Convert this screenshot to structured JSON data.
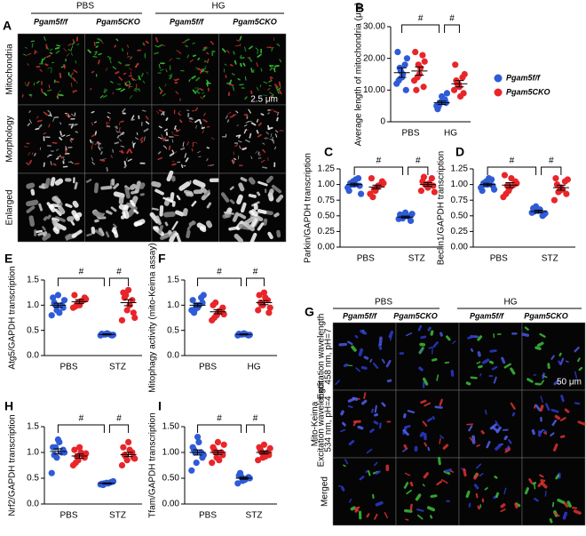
{
  "panel_a": {
    "label": "A",
    "groups": [
      "PBS",
      "HG"
    ],
    "genotypes": [
      "Pgam5f/f",
      "Pgam5CKO",
      "Pgam5f/f",
      "Pgam5CKO"
    ],
    "rows": [
      "Mitochondria",
      "Morphology",
      "Enlarged"
    ],
    "scale_bar": "2.5 μm"
  },
  "panel_g": {
    "label": "G",
    "groups": [
      "PBS",
      "HG"
    ],
    "genotypes": [
      "Pgam5f/f",
      "Pgam5CKO",
      "Pgam5f/f",
      "Pgam5CKO"
    ],
    "side_label": "Mito-Keima",
    "rows": [
      [
        "Excitation wavelength",
        "458 nm, pH=7"
      ],
      [
        "Excitation wavelength",
        "534 nm, pH=4"
      ],
      [
        "Merged"
      ]
    ],
    "scale_bar": "50 μm"
  },
  "chart_data": [
    {
      "type": "dot",
      "label": "B",
      "ylabel": "Average length of mitochondria (μm)",
      "categories": [
        "PBS",
        "HG"
      ],
      "ylim": [
        0,
        30
      ],
      "yticks": [
        0,
        {
          "value": 10,
          "label": "10.00"
        },
        {
          "value": 20,
          "label": "20.00"
        },
        {
          "value": 30,
          "label": "30.00"
        }
      ],
      "legend": "right",
      "annotations": [
        "#",
        "#"
      ],
      "series": [
        {
          "name": "Pgam5f/f",
          "color": "#2f5bd6",
          "values": [
            [
              12,
              16,
              18,
              22,
              14,
              10,
              13,
              15,
              20,
              17
            ],
            [
              5,
              6,
              7,
              4,
              8,
              6,
              5,
              7,
              9,
              6
            ]
          ],
          "means": [
            15.5,
            6
          ],
          "errors": [
            1.5,
            0.5
          ]
        },
        {
          "name": "Pgam5CKO",
          "color": "#e8262a",
          "values": [
            [
              13,
              18,
              21,
              22,
              15,
              11,
              10,
              17,
              19,
              14
            ],
            [
              10,
              12,
              14,
              18,
              11,
              9,
              13,
              8,
              15,
              12
            ]
          ],
          "means": [
            16,
            12
          ],
          "errors": [
            1.3,
            1
          ]
        }
      ]
    },
    {
      "type": "dot",
      "label": "C",
      "ylabel": "Parkin/GAPDH transcription",
      "categories": [
        "PBS",
        "STZ"
      ],
      "ylim": [
        0,
        1.25
      ],
      "yticks": [
        {
          "value": 0,
          "label": "0.00"
        },
        {
          "value": 0.25,
          "label": "0.25"
        },
        {
          "value": 0.5,
          "label": "0.50"
        },
        {
          "value": 0.75,
          "label": "0.75"
        },
        {
          "value": 1,
          "label": "1.00"
        },
        {
          "value": 1.25,
          "label": "1.25"
        }
      ],
      "annotations": [
        "#",
        "#"
      ],
      "series": [
        {
          "color": "#2f5bd6",
          "values": [
            [
              0.95,
              1.05,
              1.1,
              0.9,
              1.0,
              0.98,
              1.02,
              1.08,
              0.85,
              1.0
            ],
            [
              0.45,
              0.5,
              0.48,
              0.52,
              0.55,
              0.42,
              0.47,
              0.5,
              0.53,
              0.46
            ]
          ],
          "means": [
            1.0,
            0.48
          ],
          "errors": [
            0.02,
            0.015
          ]
        },
        {
          "color": "#e8262a",
          "values": [
            [
              0.85,
              0.9,
              1.0,
              1.1,
              0.95,
              1.05,
              0.8,
              0.98,
              1.02,
              0.92
            ],
            [
              0.9,
              1.0,
              1.1,
              1.05,
              0.95,
              0.98,
              1.12,
              1.02,
              0.88,
              1.0
            ]
          ],
          "means": [
            0.96,
            1.0
          ],
          "errors": [
            0.03,
            0.03
          ]
        }
      ]
    },
    {
      "type": "dot",
      "label": "D",
      "ylabel": "Beclin1/GAPDH transcription",
      "categories": [
        "PBS",
        "STZ"
      ],
      "ylim": [
        0,
        1.25
      ],
      "yticks": [
        {
          "value": 0,
          "label": "0.00"
        },
        {
          "value": 0.25,
          "label": "0.25"
        },
        {
          "value": 0.5,
          "label": "0.50"
        },
        {
          "value": 0.75,
          "label": "0.75"
        },
        {
          "value": 1,
          "label": "1.00"
        },
        {
          "value": 1.25,
          "label": "1.25"
        }
      ],
      "annotations": [
        "#",
        "#"
      ],
      "series": [
        {
          "color": "#2f5bd6",
          "values": [
            [
              0.95,
              1.05,
              1.08,
              0.9,
              1.0,
              0.98,
              1.02,
              1.1,
              0.92,
              1.0
            ],
            [
              0.55,
              0.6,
              0.5,
              0.62,
              0.58,
              0.52,
              0.57,
              0.6,
              0.54,
              0.65
            ]
          ],
          "means": [
            1.0,
            0.57
          ],
          "errors": [
            0.02,
            0.02
          ]
        },
        {
          "color": "#e8262a",
          "values": [
            [
              0.8,
              0.9,
              1.0,
              1.15,
              0.95,
              1.05,
              0.85,
              1.1,
              1.02,
              0.98
            ],
            [
              0.75,
              0.9,
              1.05,
              1.1,
              0.95,
              0.85,
              1.0,
              0.92,
              1.08,
              0.88
            ]
          ],
          "means": [
            0.99,
            0.95
          ],
          "errors": [
            0.04,
            0.04
          ]
        }
      ]
    },
    {
      "type": "dot",
      "label": "E",
      "ylabel": "Atg5/GAPDH transcription",
      "categories": [
        "PBS",
        "STZ"
      ],
      "ylim": [
        0,
        1.5
      ],
      "yticks": [
        {
          "value": 0,
          "label": "0.0"
        },
        {
          "value": 0.5,
          "label": "0.5"
        },
        {
          "value": 1,
          "label": "1.0"
        },
        {
          "value": 1.5,
          "label": "1.5"
        }
      ],
      "annotations": [
        "#",
        "#"
      ],
      "series": [
        {
          "color": "#2f5bd6",
          "values": [
            [
              0.8,
              0.9,
              1.0,
              1.15,
              1.2,
              0.95,
              1.05,
              0.85,
              1.1,
              1.0
            ],
            [
              0.4,
              0.42,
              0.41,
              0.43,
              0.44,
              0.4,
              0.42,
              0.43,
              0.41,
              0.42
            ]
          ],
          "means": [
            1.0,
            0.42
          ],
          "errors": [
            0.04,
            0.01
          ]
        },
        {
          "color": "#e8262a",
          "values": [
            [
              0.95,
              1.05,
              1.1,
              1.2,
              1.0,
              1.15,
              0.98,
              1.08,
              1.12,
              1.02
            ],
            [
              0.7,
              0.9,
              1.1,
              1.25,
              1.3,
              0.85,
              1.15,
              1.0,
              0.75,
              1.2
            ]
          ],
          "means": [
            1.07,
            1.05
          ],
          "errors": [
            0.04,
            0.06
          ]
        }
      ]
    },
    {
      "type": "dot",
      "label": "F",
      "ylabel": "Mitophagy activity (mito-Keima assay)",
      "categories": [
        "PBS",
        "HG"
      ],
      "ylim": [
        0,
        1.5
      ],
      "yticks": [
        {
          "value": 0,
          "label": "0.0"
        },
        {
          "value": 0.5,
          "label": "0.5"
        },
        {
          "value": 1,
          "label": "1.0"
        },
        {
          "value": 1.5,
          "label": "1.5"
        }
      ],
      "annotations": [
        "#",
        "#"
      ],
      "series": [
        {
          "color": "#2f5bd6",
          "values": [
            [
              0.9,
              1.0,
              1.15,
              1.1,
              0.95,
              1.05,
              0.85,
              1.0,
              1.2,
              0.92
            ],
            [
              0.4,
              0.42,
              0.41,
              0.43,
              0.44,
              0.4,
              0.42,
              0.43,
              0.41,
              0.42
            ]
          ],
          "means": [
            1.0,
            0.42
          ],
          "errors": [
            0.03,
            0.01
          ]
        },
        {
          "color": "#e8262a",
          "values": [
            [
              0.7,
              0.8,
              0.9,
              1.0,
              0.85,
              0.95,
              0.75,
              0.88,
              0.82,
              1.05
            ],
            [
              0.9,
              1.0,
              1.1,
              1.2,
              1.25,
              0.85,
              1.05,
              1.15,
              0.95,
              1.0
            ]
          ],
          "means": [
            0.87,
            1.05
          ],
          "errors": [
            0.04,
            0.04
          ]
        }
      ]
    },
    {
      "type": "dot",
      "label": "H",
      "ylabel": "Nrf2/GAPDH transcription",
      "categories": [
        "PBS",
        "STZ"
      ],
      "ylim": [
        0,
        1.5
      ],
      "yticks": [
        {
          "value": 0,
          "label": "0.0"
        },
        {
          "value": 0.5,
          "label": "0.5"
        },
        {
          "value": 1,
          "label": "1.0"
        },
        {
          "value": 1.5,
          "label": "1.5"
        }
      ],
      "annotations": [
        "#",
        "#"
      ],
      "series": [
        {
          "color": "#2f5bd6",
          "values": [
            [
              0.6,
              0.9,
              1.0,
              1.1,
              1.25,
              1.05,
              0.95,
              1.2,
              1.0,
              1.1
            ],
            [
              0.38,
              0.4,
              0.42,
              0.39,
              0.41,
              0.43,
              0.37,
              0.4,
              0.44,
              0.4
            ]
          ],
          "means": [
            1.02,
            0.4
          ],
          "errors": [
            0.05,
            0.01
          ]
        },
        {
          "color": "#e8262a",
          "values": [
            [
              0.75,
              0.85,
              0.95,
              1.05,
              1.1,
              0.9,
              0.8,
              1.0,
              0.98,
              0.92
            ],
            [
              0.75,
              0.85,
              1.0,
              1.1,
              1.2,
              0.9,
              0.95,
              1.05,
              0.88,
              0.92
            ]
          ],
          "means": [
            0.93,
            0.96
          ],
          "errors": [
            0.04,
            0.04
          ]
        }
      ]
    },
    {
      "type": "dot",
      "label": "I",
      "ylabel": "Tfam/GAPDH transcription",
      "categories": [
        "PBS",
        "STZ"
      ],
      "ylim": [
        0,
        1.5
      ],
      "yticks": [
        {
          "value": 0,
          "label": "0.00"
        },
        {
          "value": 0.5,
          "label": "0.50"
        },
        {
          "value": 1,
          "label": "1.00"
        },
        {
          "value": 1.5,
          "label": "1.50"
        }
      ],
      "annotations": [
        "#",
        "#"
      ],
      "series": [
        {
          "color": "#2f5bd6",
          "values": [
            [
              0.65,
              0.8,
              1.0,
              1.1,
              1.3,
              0.9,
              1.05,
              1.2,
              0.95,
              1.0
            ],
            [
              0.4,
              0.45,
              0.5,
              0.55,
              0.48,
              0.52,
              0.6,
              0.47,
              0.5,
              0.53
            ]
          ],
          "means": [
            1.0,
            0.5
          ],
          "errors": [
            0.05,
            0.02
          ]
        },
        {
          "color": "#e8262a",
          "values": [
            [
              0.8,
              0.9,
              1.0,
              1.1,
              1.2,
              0.95,
              1.05,
              0.85,
              1.15,
              1.0
            ],
            [
              0.85,
              0.9,
              1.0,
              1.1,
              1.15,
              0.95,
              1.05,
              0.92,
              1.08,
              1.0
            ]
          ],
          "means": [
            1.0,
            1.0
          ],
          "errors": [
            0.04,
            0.03
          ]
        }
      ]
    }
  ]
}
